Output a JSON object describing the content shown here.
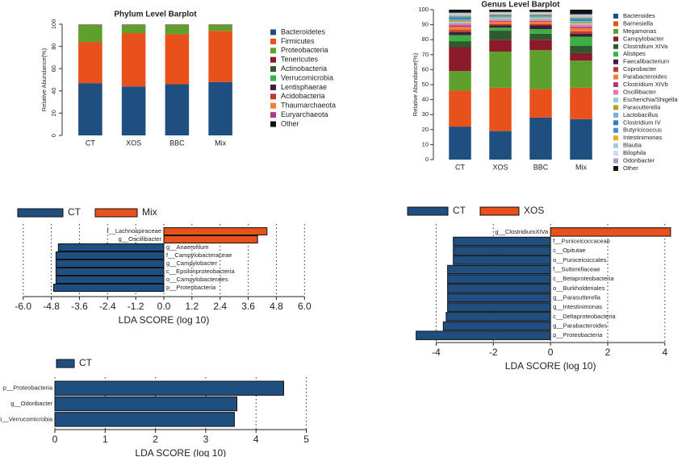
{
  "chart_data": [
    {
      "type": "stacked-bar",
      "title": "Phylum Level Barplot",
      "y_label": "Relative Abundance(%)",
      "categories": [
        "CT",
        "XOS",
        "BBC",
        "Mix"
      ],
      "ylim": [
        0,
        100
      ],
      "yticks": [
        0,
        20,
        40,
        60,
        80,
        100
      ],
      "series": [
        {
          "name": "Bacteroidetes",
          "color": "#1f4e80",
          "values": [
            47,
            44,
            46,
            48
          ]
        },
        {
          "name": "Firmicutes",
          "color": "#e8501c",
          "values": [
            37,
            48,
            45,
            46
          ]
        },
        {
          "name": "Proteobacteria",
          "color": "#5ea02e",
          "values": [
            15,
            7,
            8,
            5
          ]
        },
        {
          "name": "Tenericutes",
          "color": "#8b1a2b",
          "values": [
            0.2,
            0.2,
            0.2,
            0.2
          ]
        },
        {
          "name": "Actinobacteria",
          "color": "#2e5b2e",
          "values": [
            0.2,
            0.2,
            0.2,
            0.2
          ]
        },
        {
          "name": "Verrucomicrobia",
          "color": "#3cb043",
          "values": [
            0.2,
            0.2,
            0.2,
            0.2
          ]
        },
        {
          "name": "Lentisphaerae",
          "color": "#3b1f3f",
          "values": [
            0.1,
            0.1,
            0.1,
            0.1
          ]
        },
        {
          "name": "Acidobacteria",
          "color": "#c0392b",
          "values": [
            0.1,
            0.1,
            0.1,
            0.1
          ]
        },
        {
          "name": "Thaumarchaeota",
          "color": "#f08030",
          "values": [
            0.1,
            0.1,
            0.1,
            0.1
          ]
        },
        {
          "name": "Euryarchaeota",
          "color": "#b03a8a",
          "values": [
            0.05,
            0.05,
            0.05,
            0.05
          ]
        },
        {
          "name": "Other",
          "color": "#111111",
          "values": [
            0.05,
            0.05,
            0.05,
            0.05
          ]
        }
      ]
    },
    {
      "type": "stacked-bar",
      "title": "Genus Level Barplot",
      "y_label": "Relative Abundance(%)",
      "categories": [
        "CT",
        "XOS",
        "BBC",
        "Mix"
      ],
      "ylim": [
        0,
        100
      ],
      "yticks": [
        0,
        10,
        20,
        30,
        40,
        50,
        60,
        70,
        80,
        90,
        100
      ],
      "series": [
        {
          "name": "Bacteroides",
          "color": "#1f4e80",
          "values": [
            22,
            19,
            28,
            27
          ]
        },
        {
          "name": "Barnesiella",
          "color": "#e8501c",
          "values": [
            24,
            29,
            19,
            21
          ]
        },
        {
          "name": "Megamonas",
          "color": "#5ea02e",
          "values": [
            13,
            24,
            26,
            18
          ]
        },
        {
          "name": "Campylobacter",
          "color": "#8b1a2b",
          "values": [
            16,
            8,
            7,
            5
          ]
        },
        {
          "name": "Clostridium XIVa",
          "color": "#2e5b2e",
          "values": [
            4,
            6,
            4,
            5
          ]
        },
        {
          "name": "Alistipes",
          "color": "#3cb043",
          "values": [
            4,
            2,
            3,
            6
          ]
        },
        {
          "name": "Faecalibacterium",
          "color": "#3b1f3f",
          "values": [
            2,
            1.5,
            2.5,
            2
          ]
        },
        {
          "name": "Coprobacter",
          "color": "#c0392b",
          "values": [
            1.5,
            1,
            1,
            1.5
          ]
        },
        {
          "name": "Parabacteroides",
          "color": "#f08030",
          "values": [
            2,
            1.5,
            1.5,
            2
          ]
        },
        {
          "name": "Clostridium XIVb",
          "color": "#b03a8a",
          "values": [
            1,
            0.5,
            0.5,
            1
          ]
        },
        {
          "name": "Oscillibacter",
          "color": "#e67ab0",
          "values": [
            1.5,
            1,
            1,
            1.5
          ]
        },
        {
          "name": "Escherichia/Shigella",
          "color": "#8fcfcf",
          "values": [
            1,
            1,
            1,
            1
          ]
        },
        {
          "name": "Parasutterella",
          "color": "#b5a020",
          "values": [
            1,
            0.5,
            0.5,
            1
          ]
        },
        {
          "name": "Lactobacillus",
          "color": "#6fb1e0",
          "values": [
            0.5,
            0.5,
            0.5,
            0.5
          ]
        },
        {
          "name": "Clostridium IV",
          "color": "#2c7fb8",
          "values": [
            1,
            0.5,
            0.5,
            1
          ]
        },
        {
          "name": "Butyricicoccus",
          "color": "#4a90c0",
          "values": [
            1,
            0.5,
            0.5,
            1
          ]
        },
        {
          "name": "Intestinimonas",
          "color": "#f5a623",
          "values": [
            0.5,
            0.5,
            0.5,
            0.5
          ]
        },
        {
          "name": "Blautia",
          "color": "#aac8e0",
          "values": [
            1,
            0.5,
            0.5,
            1
          ]
        },
        {
          "name": "Bilophila",
          "color": "#c6dbef",
          "values": [
            0.5,
            0.5,
            0.5,
            0.5
          ]
        },
        {
          "name": "Odoribacter",
          "color": "#a0a0c0",
          "values": [
            0.5,
            0.5,
            0.5,
            0.5
          ]
        },
        {
          "name": "Other",
          "color": "#111111",
          "values": [
            2,
            1.5,
            1.5,
            3
          ]
        }
      ]
    },
    {
      "type": "lda-bar",
      "x_label": "LDA SCORE (log 10)",
      "grid": true,
      "xlim": [
        -6.3,
        6.3
      ],
      "xticks": [
        {
          "value": -6,
          "label": "-6.0"
        },
        -4.8,
        -3.6,
        -2.4,
        -1.2,
        {
          "value": 0,
          "label": "0.0"
        },
        1.2,
        2.4,
        3.6,
        4.8,
        {
          "value": 6,
          "label": "6.0"
        }
      ],
      "categories": [
        "f__Lachnospiraceae",
        "g__Oscillibacter",
        "g__Anaerofilum",
        "f__Campylobacteraceae",
        "g__Campylobacter",
        "c__Epsilonproteobacteria",
        "o__Campylobacterales",
        "p__Proteobacteria"
      ],
      "series": [
        {
          "name": "CT",
          "color": "#1f4e80",
          "values": [
            null,
            null,
            -4.5,
            -4.6,
            -4.6,
            -4.6,
            -4.6,
            -4.7
          ]
        },
        {
          "name": "Mix",
          "color": "#e8501c",
          "values": [
            4.4,
            4.0,
            null,
            null,
            null,
            null,
            null,
            null
          ]
        }
      ]
    },
    {
      "type": "lda-bar",
      "x_label": "LDA SCORE (log 10)",
      "grid": true,
      "xlim": [
        -5,
        4.4
      ],
      "xticks": [
        -4,
        -2,
        0,
        2,
        4
      ],
      "categories": [
        "g__ClostridiumXIVa",
        "f__Puniceicoccaceae",
        "c__Opitutae",
        "o__Puniceicoccales",
        "f__Sutterellaceae",
        "c__Betaproteobacteria",
        "o__Burkholderiales",
        "g__Parasutterella",
        "g__Intestinimonas",
        "c__Deltaproteobacteria",
        "g__Parabacteroides",
        "p__Proteobacteria"
      ],
      "series": [
        {
          "name": "CT",
          "color": "#1f4e80",
          "values": [
            null,
            -3.4,
            -3.4,
            -3.4,
            -3.6,
            -3.6,
            -3.6,
            -3.6,
            -3.6,
            -3.65,
            -3.75,
            -4.7
          ]
        },
        {
          "name": "XOS",
          "color": "#e8501c",
          "values": [
            4.2,
            null,
            null,
            null,
            null,
            null,
            null,
            null,
            null,
            null,
            null,
            null
          ]
        }
      ]
    },
    {
      "type": "lda-bar",
      "x_label": "LDA SCORE (log 10)",
      "grid": true,
      "xlim": [
        0,
        5.2
      ],
      "xticks": [
        0,
        1,
        2,
        3,
        4,
        5
      ],
      "categories": [
        "p__Proteobacteria",
        "g__Odoribacter",
        "p__Verrucomicrobia"
      ],
      "series": [
        {
          "name": "CT",
          "color": "#1f4e80",
          "values": [
            4.55,
            3.62,
            3.57
          ]
        }
      ]
    }
  ]
}
